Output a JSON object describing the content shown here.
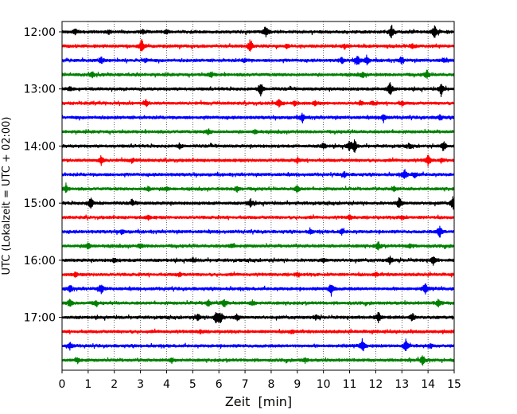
{
  "chart_data": {
    "type": "line",
    "title": "",
    "xlabel": "Zeit  [min]",
    "ylabel": "UTC (Lokalzeit = UTC + 02:00)",
    "xlim": [
      0,
      15
    ],
    "x_ticks": [
      0,
      1,
      2,
      3,
      4,
      5,
      6,
      7,
      8,
      9,
      10,
      11,
      12,
      13,
      14,
      15
    ],
    "y_tick_labels": [
      "12:00",
      "13:00",
      "14:00",
      "15:00",
      "16:00",
      "17:00"
    ],
    "grid": "vertical dotted lines at each minute",
    "legend": "none",
    "minutes_per_trace": 15,
    "trace_colors": [
      "#000000",
      "#ff0000",
      "#0000ff",
      "#008000"
    ],
    "series": [
      {
        "start": "12:00",
        "events": [
          [
            0.5,
            0.45
          ],
          [
            1.8,
            0.25
          ],
          [
            3.1,
            0.3
          ],
          [
            4.0,
            0.35
          ],
          [
            7.8,
            0.8
          ],
          [
            12.6,
            1.0
          ],
          [
            14.25,
            1.0
          ]
        ]
      },
      {
        "start": "12:15",
        "events": [
          [
            3.05,
            1.0
          ],
          [
            7.2,
            1.0
          ],
          [
            8.6,
            0.3
          ],
          [
            10.8,
            0.3
          ],
          [
            13.4,
            0.3
          ]
        ]
      },
      {
        "start": "12:30",
        "events": [
          [
            1.5,
            0.5
          ],
          [
            3.2,
            0.35
          ],
          [
            7.0,
            0.3
          ],
          [
            10.7,
            0.4
          ],
          [
            11.3,
            0.8
          ],
          [
            11.65,
            0.6
          ],
          [
            13.0,
            0.5
          ],
          [
            14.6,
            0.3
          ]
        ]
      },
      {
        "start": "12:45",
        "events": [
          [
            1.15,
            0.45
          ],
          [
            5.7,
            0.45
          ],
          [
            11.5,
            0.35
          ],
          [
            13.95,
            0.55
          ]
        ]
      },
      {
        "start": "13:00",
        "events": [
          [
            0.3,
            0.3
          ],
          [
            7.6,
            1.0
          ],
          [
            12.55,
            1.0
          ],
          [
            14.5,
            1.0
          ]
        ]
      },
      {
        "start": "13:15",
        "events": [
          [
            3.2,
            0.5
          ],
          [
            8.3,
            0.55
          ],
          [
            8.9,
            0.35
          ],
          [
            9.7,
            0.3
          ],
          [
            11.4,
            0.3
          ],
          [
            11.9,
            0.3
          ],
          [
            13.0,
            0.3
          ]
        ]
      },
      {
        "start": "13:30",
        "events": [
          [
            9.2,
            0.6
          ],
          [
            12.3,
            0.55
          ],
          [
            14.45,
            0.35
          ]
        ]
      },
      {
        "start": "13:45",
        "events": [
          [
            5.6,
            0.4
          ],
          [
            7.4,
            0.3
          ]
        ]
      },
      {
        "start": "14:00",
        "events": [
          [
            4.5,
            0.3
          ],
          [
            10.0,
            0.45
          ],
          [
            11.0,
            0.8
          ],
          [
            11.2,
            0.9
          ],
          [
            13.3,
            0.3
          ],
          [
            14.6,
            0.7
          ]
        ]
      },
      {
        "start": "14:15",
        "events": [
          [
            1.5,
            0.6
          ],
          [
            2.7,
            0.3
          ],
          [
            9.0,
            0.3
          ],
          [
            14.0,
            0.8
          ],
          [
            14.5,
            0.3
          ]
        ]
      },
      {
        "start": "14:30",
        "events": [
          [
            10.8,
            0.35
          ],
          [
            13.1,
            0.7
          ],
          [
            13.5,
            0.4
          ]
        ]
      },
      {
        "start": "14:45",
        "events": [
          [
            0.15,
            0.5
          ],
          [
            3.3,
            0.4
          ],
          [
            4.0,
            0.3
          ],
          [
            6.7,
            0.45
          ],
          [
            9.0,
            0.45
          ],
          [
            12.7,
            0.3
          ]
        ]
      },
      {
        "start": "15:00",
        "events": [
          [
            1.1,
            0.9
          ],
          [
            2.7,
            0.3
          ],
          [
            7.2,
            0.6
          ],
          [
            12.9,
            0.9
          ],
          [
            14.95,
            0.9
          ]
        ]
      },
      {
        "start": "15:15",
        "events": [
          [
            3.3,
            0.3
          ],
          [
            11.0,
            0.3
          ],
          [
            13.0,
            0.3
          ]
        ]
      },
      {
        "start": "15:30",
        "events": [
          [
            2.3,
            0.3
          ],
          [
            9.5,
            0.3
          ],
          [
            10.7,
            0.4
          ],
          [
            14.45,
            0.9
          ]
        ]
      },
      {
        "start": "15:45",
        "events": [
          [
            1.0,
            0.5
          ],
          [
            3.0,
            0.3
          ],
          [
            6.5,
            0.3
          ],
          [
            12.1,
            0.6
          ],
          [
            13.3,
            0.3
          ]
        ]
      },
      {
        "start": "16:00",
        "events": [
          [
            2.0,
            0.3
          ],
          [
            5.0,
            0.3
          ],
          [
            10.0,
            0.3
          ],
          [
            12.55,
            0.6
          ],
          [
            14.2,
            0.6
          ]
        ]
      },
      {
        "start": "16:15",
        "events": [
          [
            0.5,
            0.3
          ],
          [
            4.5,
            0.3
          ],
          [
            9.0,
            0.3
          ],
          [
            12.0,
            0.3
          ]
        ]
      },
      {
        "start": "16:30",
        "events": [
          [
            0.3,
            0.55
          ],
          [
            1.5,
            0.7
          ],
          [
            10.3,
            1.0
          ],
          [
            13.9,
            0.75
          ]
        ]
      },
      {
        "start": "16:45",
        "events": [
          [
            0.3,
            0.55
          ],
          [
            1.3,
            0.35
          ],
          [
            5.6,
            0.5
          ],
          [
            6.2,
            0.6
          ],
          [
            7.3,
            0.35
          ],
          [
            14.4,
            0.6
          ]
        ]
      },
      {
        "start": "17:00",
        "events": [
          [
            5.2,
            0.5
          ],
          [
            5.9,
            0.9
          ],
          [
            6.05,
            0.9
          ],
          [
            6.7,
            0.5
          ],
          [
            9.7,
            0.35
          ],
          [
            12.1,
            0.75
          ],
          [
            13.4,
            0.6
          ]
        ]
      },
      {
        "start": "17:15",
        "events": [
          [
            5.3,
            0.3
          ],
          [
            8.8,
            0.3
          ]
        ]
      },
      {
        "start": "17:30",
        "events": [
          [
            0.3,
            0.5
          ],
          [
            11.5,
            0.9
          ],
          [
            13.15,
            0.85
          ],
          [
            14.1,
            0.3
          ]
        ]
      },
      {
        "start": "17:45",
        "events": [
          [
            0.6,
            0.4
          ],
          [
            4.2,
            0.3
          ],
          [
            9.3,
            0.3
          ],
          [
            13.8,
            0.75
          ]
        ]
      }
    ]
  }
}
